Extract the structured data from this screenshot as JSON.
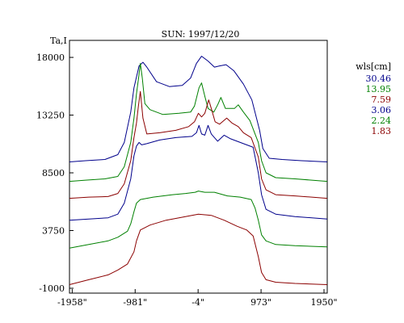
{
  "chart_data": {
    "type": "line",
    "title": "SUN: 1997/12/20",
    "ylabel": "Ta,I",
    "xlabel": "",
    "xlim": [
      -2000,
      2000
    ],
    "ylim": [
      -1400,
      19400
    ],
    "x_ticks": [
      -1958,
      -981,
      -4,
      973,
      1950
    ],
    "x_tick_labels": [
      "-1958\"",
      "-981\"",
      "-4\"",
      "973\"",
      "1950\""
    ],
    "y_ticks": [
      18000,
      13250,
      8500,
      3750,
      -1000
    ],
    "y_tick_labels": [
      "18000",
      "13250",
      "8500",
      "3750",
      "-1000"
    ],
    "grid": false,
    "legend_title": "wls[cm]",
    "legend_position": "right",
    "series": [
      {
        "name": "30.46",
        "color": "#00008b",
        "points": [
          [
            -2000,
            9400
          ],
          [
            -1750,
            9500
          ],
          [
            -1450,
            9600
          ],
          [
            -1250,
            10000
          ],
          [
            -1150,
            11000
          ],
          [
            -1050,
            13500
          ],
          [
            -1000,
            15500
          ],
          [
            -920,
            17300
          ],
          [
            -860,
            17600
          ],
          [
            -800,
            17200
          ],
          [
            -650,
            16000
          ],
          [
            -450,
            15600
          ],
          [
            -250,
            15700
          ],
          [
            -120,
            16300
          ],
          [
            -30,
            17500
          ],
          [
            50,
            18100
          ],
          [
            150,
            17700
          ],
          [
            250,
            17200
          ],
          [
            330,
            17300
          ],
          [
            430,
            17400
          ],
          [
            550,
            16900
          ],
          [
            700,
            15800
          ],
          [
            830,
            14500
          ],
          [
            950,
            12000
          ],
          [
            1000,
            10500
          ],
          [
            1100,
            9700
          ],
          [
            1300,
            9600
          ],
          [
            1600,
            9500
          ],
          [
            2000,
            9400
          ]
        ]
      },
      {
        "name": "13.95",
        "color": "#008000",
        "points": [
          [
            -2000,
            7800
          ],
          [
            -1750,
            7900
          ],
          [
            -1450,
            8000
          ],
          [
            -1250,
            8200
          ],
          [
            -1150,
            9000
          ],
          [
            -1050,
            11000
          ],
          [
            -1000,
            13000
          ],
          [
            -960,
            15000
          ],
          [
            -930,
            16200
          ],
          [
            -900,
            17500
          ],
          [
            -870,
            16300
          ],
          [
            -830,
            14200
          ],
          [
            -750,
            13700
          ],
          [
            -550,
            13300
          ],
          [
            -300,
            13400
          ],
          [
            -120,
            13500
          ],
          [
            -60,
            14000
          ],
          [
            10,
            15500
          ],
          [
            50,
            15900
          ],
          [
            100,
            14800
          ],
          [
            150,
            13800
          ],
          [
            240,
            13500
          ],
          [
            300,
            14100
          ],
          [
            350,
            14700
          ],
          [
            420,
            13800
          ],
          [
            560,
            13800
          ],
          [
            620,
            14100
          ],
          [
            700,
            13500
          ],
          [
            800,
            12800
          ],
          [
            930,
            11000
          ],
          [
            980,
            9500
          ],
          [
            1050,
            8500
          ],
          [
            1200,
            8100
          ],
          [
            1500,
            8000
          ],
          [
            2000,
            7800
          ]
        ]
      },
      {
        "name": "7.59",
        "color": "#8b0000",
        "points": [
          [
            -2000,
            6400
          ],
          [
            -1700,
            6500
          ],
          [
            -1400,
            6550
          ],
          [
            -1250,
            6800
          ],
          [
            -1150,
            7600
          ],
          [
            -1050,
            9500
          ],
          [
            -1000,
            11400
          ],
          [
            -960,
            12600
          ],
          [
            -930,
            14000
          ],
          [
            -900,
            15200
          ],
          [
            -860,
            13000
          ],
          [
            -800,
            11700
          ],
          [
            -600,
            11800
          ],
          [
            -350,
            12000
          ],
          [
            -150,
            12300
          ],
          [
            -60,
            12700
          ],
          [
            0,
            13400
          ],
          [
            50,
            13100
          ],
          [
            100,
            13400
          ],
          [
            160,
            14500
          ],
          [
            200,
            13800
          ],
          [
            260,
            12700
          ],
          [
            330,
            12500
          ],
          [
            440,
            13000
          ],
          [
            520,
            12600
          ],
          [
            620,
            12300
          ],
          [
            700,
            11800
          ],
          [
            820,
            11400
          ],
          [
            930,
            9800
          ],
          [
            980,
            8000
          ],
          [
            1050,
            7100
          ],
          [
            1200,
            6700
          ],
          [
            1500,
            6600
          ],
          [
            2000,
            6400
          ]
        ]
      },
      {
        "name": "3.06",
        "color": "#00008b",
        "points": [
          [
            -2000,
            4600
          ],
          [
            -1700,
            4700
          ],
          [
            -1400,
            4800
          ],
          [
            -1250,
            5100
          ],
          [
            -1150,
            6000
          ],
          [
            -1050,
            8000
          ],
          [
            -1000,
            9900
          ],
          [
            -960,
            10700
          ],
          [
            -920,
            11000
          ],
          [
            -880,
            10800
          ],
          [
            -800,
            10900
          ],
          [
            -600,
            11200
          ],
          [
            -350,
            11400
          ],
          [
            -100,
            11500
          ],
          [
            -30,
            11800
          ],
          [
            10,
            12400
          ],
          [
            50,
            11700
          ],
          [
            100,
            11600
          ],
          [
            150,
            12400
          ],
          [
            200,
            11700
          ],
          [
            300,
            11100
          ],
          [
            400,
            11600
          ],
          [
            500,
            11300
          ],
          [
            700,
            10900
          ],
          [
            850,
            10600
          ],
          [
            930,
            8500
          ],
          [
            980,
            6700
          ],
          [
            1050,
            5500
          ],
          [
            1200,
            5100
          ],
          [
            1500,
            4900
          ],
          [
            2000,
            4700
          ]
        ]
      },
      {
        "name": "2.24",
        "color": "#008000",
        "points": [
          [
            -2000,
            2300
          ],
          [
            -1700,
            2600
          ],
          [
            -1400,
            2900
          ],
          [
            -1250,
            3200
          ],
          [
            -1100,
            3700
          ],
          [
            -1050,
            4300
          ],
          [
            -1000,
            5300
          ],
          [
            -960,
            6000
          ],
          [
            -900,
            6300
          ],
          [
            -700,
            6500
          ],
          [
            -400,
            6700
          ],
          [
            -200,
            6800
          ],
          [
            -50,
            6900
          ],
          [
            0,
            7000
          ],
          [
            100,
            6900
          ],
          [
            250,
            6900
          ],
          [
            450,
            6600
          ],
          [
            650,
            6500
          ],
          [
            820,
            6300
          ],
          [
            880,
            5600
          ],
          [
            930,
            4600
          ],
          [
            980,
            3400
          ],
          [
            1050,
            2900
          ],
          [
            1200,
            2600
          ],
          [
            1500,
            2500
          ],
          [
            2000,
            2400
          ]
        ]
      },
      {
        "name": "1.83",
        "color": "#8b0000",
        "points": [
          [
            -2000,
            -700
          ],
          [
            -1700,
            -300
          ],
          [
            -1400,
            100
          ],
          [
            -1250,
            500
          ],
          [
            -1100,
            1000
          ],
          [
            -1000,
            2000
          ],
          [
            -960,
            2900
          ],
          [
            -900,
            3800
          ],
          [
            -750,
            4200
          ],
          [
            -500,
            4600
          ],
          [
            -300,
            4800
          ],
          [
            -100,
            5000
          ],
          [
            0,
            5100
          ],
          [
            200,
            5000
          ],
          [
            400,
            4600
          ],
          [
            600,
            4100
          ],
          [
            750,
            3800
          ],
          [
            850,
            3300
          ],
          [
            930,
            1600
          ],
          [
            980,
            300
          ],
          [
            1050,
            -300
          ],
          [
            1200,
            -500
          ],
          [
            1500,
            -600
          ],
          [
            2000,
            -700
          ]
        ]
      }
    ]
  }
}
